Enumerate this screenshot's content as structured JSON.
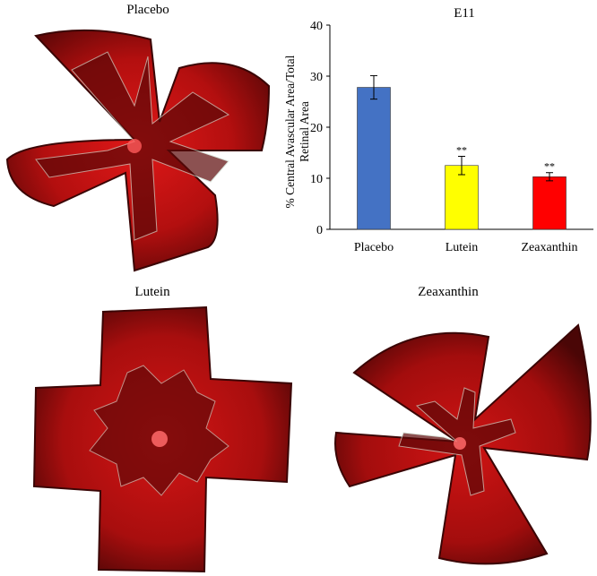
{
  "panels": {
    "placebo_label": "Placebo",
    "lutein_label": "Lutein",
    "zeaxanthin_label": "Zeaxanthin"
  },
  "colors": {
    "retina_tissue": "#b30f0f",
    "retina_dark": "#3a0505",
    "vessel_outline": "#c9d6c9"
  },
  "chart_data": {
    "type": "bar",
    "title": "E11",
    "ylabel": "% Central Avascular Area/Total Retinal Area",
    "ylabel_line1": "% Central Avascular Area/Total",
    "ylabel_line2": "Retinal Area",
    "categories": [
      "Placebo",
      "Lutein",
      "Zeaxanthin"
    ],
    "values": [
      27.8,
      12.5,
      10.3
    ],
    "errors": [
      2.3,
      1.8,
      0.8
    ],
    "annotations": [
      "",
      "**",
      "**"
    ],
    "colors": [
      "#4472c4",
      "#ffff00",
      "#ff0000"
    ],
    "ylim": [
      0,
      40
    ],
    "yticks": [
      0,
      10,
      20,
      30,
      40
    ],
    "grid": false
  }
}
